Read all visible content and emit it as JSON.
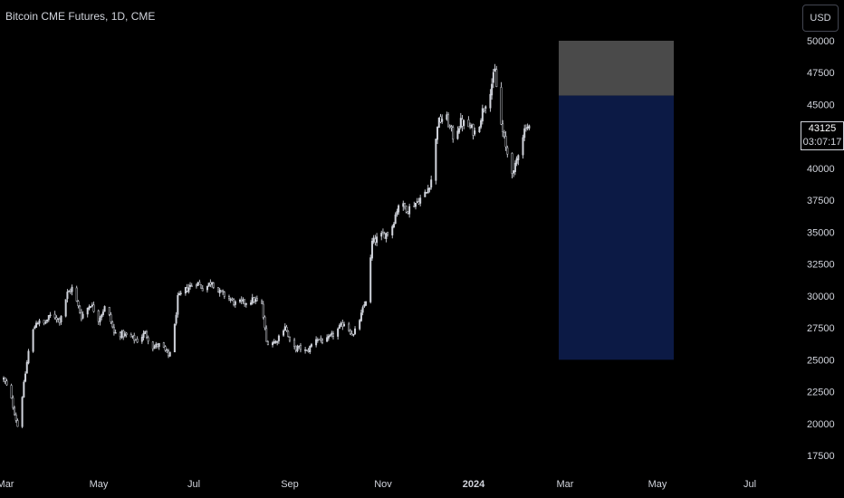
{
  "header": {
    "title": "Bitcoin CME Futures, 1D, CME"
  },
  "toolbar": {
    "currency_label": "USD"
  },
  "price_tag": {
    "price": "43125",
    "countdown": "03:07:17"
  },
  "colors": {
    "background": "#000000",
    "candle": "#d1d4dc",
    "box_target": "#4a4a4a",
    "box_stop": "#0c1a45",
    "text": "#d1d4dc"
  },
  "chart_data": {
    "type": "candlestick",
    "title": "Bitcoin CME Futures, 1D, CME",
    "xlabel": "",
    "ylabel": "",
    "x_ticks": [
      "Mar",
      "May",
      "Jul",
      "Sep",
      "Nov",
      "2024",
      "Mar",
      "May",
      "Jul"
    ],
    "y_ticks": [
      50000,
      47500,
      45000,
      42500,
      40000,
      37500,
      35000,
      32500,
      30000,
      27500,
      25000,
      22500,
      20000,
      17500
    ],
    "ylim": [
      16000,
      52000
    ],
    "xlim": [
      "2023-03-01",
      "2024-07-31"
    ],
    "last_price": 43125,
    "grid": false,
    "path": [
      [
        "2023-03-01",
        23500
      ],
      [
        "2023-03-05",
        22400
      ],
      [
        "2023-03-10",
        19800
      ],
      [
        "2023-03-13",
        22200
      ],
      [
        "2023-03-18",
        26500
      ],
      [
        "2023-03-22",
        28000
      ],
      [
        "2023-03-27",
        27800
      ],
      [
        "2023-04-01",
        28600
      ],
      [
        "2023-04-06",
        28100
      ],
      [
        "2023-04-11",
        30200
      ],
      [
        "2023-04-14",
        30600
      ],
      [
        "2023-04-20",
        28400
      ],
      [
        "2023-04-26",
        29400
      ],
      [
        "2023-05-01",
        28200
      ],
      [
        "2023-05-06",
        29300
      ],
      [
        "2023-05-11",
        27100
      ],
      [
        "2023-05-16",
        27000
      ],
      [
        "2023-05-21",
        26800
      ],
      [
        "2023-05-26",
        26500
      ],
      [
        "2023-05-31",
        27100
      ],
      [
        "2023-06-05",
        26000
      ],
      [
        "2023-06-10",
        26200
      ],
      [
        "2023-06-15",
        25300
      ],
      [
        "2023-06-18",
        26500
      ],
      [
        "2023-06-21",
        29800
      ],
      [
        "2023-06-27",
        30600
      ],
      [
        "2023-07-03",
        31100
      ],
      [
        "2023-07-08",
        30500
      ],
      [
        "2023-07-13",
        31200
      ],
      [
        "2023-07-16",
        30400
      ],
      [
        "2023-07-22",
        30000
      ],
      [
        "2023-07-28",
        29400
      ],
      [
        "2023-08-03",
        29500
      ],
      [
        "2023-08-09",
        29700
      ],
      [
        "2023-08-14",
        29300
      ],
      [
        "2023-08-17",
        26400
      ],
      [
        "2023-08-23",
        26400
      ],
      [
        "2023-08-29",
        27700
      ],
      [
        "2023-09-02",
        25900
      ],
      [
        "2023-09-08",
        25900
      ],
      [
        "2023-09-12",
        25600
      ],
      [
        "2023-09-18",
        26700
      ],
      [
        "2023-09-24",
        26400
      ],
      [
        "2023-09-30",
        27100
      ],
      [
        "2023-10-06",
        27900
      ],
      [
        "2023-10-12",
        26900
      ],
      [
        "2023-10-17",
        28500
      ],
      [
        "2023-10-21",
        30100
      ],
      [
        "2023-10-24",
        34200
      ],
      [
        "2023-10-30",
        34700
      ],
      [
        "2023-11-05",
        35100
      ],
      [
        "2023-11-10",
        37200
      ],
      [
        "2023-11-16",
        36800
      ],
      [
        "2023-11-22",
        37400
      ],
      [
        "2023-11-28",
        38100
      ],
      [
        "2023-12-02",
        39500
      ],
      [
        "2023-12-05",
        43500
      ],
      [
        "2023-12-10",
        44200
      ],
      [
        "2023-12-15",
        42500
      ],
      [
        "2023-12-20",
        43600
      ],
      [
        "2023-12-25",
        43300
      ],
      [
        "2023-12-30",
        42700
      ],
      [
        "2024-01-03",
        44500
      ],
      [
        "2024-01-08",
        46200
      ],
      [
        "2024-01-11",
        47600
      ],
      [
        "2024-01-14",
        44000
      ],
      [
        "2024-01-18",
        41600
      ],
      [
        "2024-01-23",
        39500
      ],
      [
        "2024-01-27",
        41900
      ],
      [
        "2024-01-31",
        43400
      ],
      [
        "2024-02-03",
        43125
      ]
    ],
    "position_box": {
      "start": "2024-02-21",
      "end": "2024-05-05",
      "target_top": 50000,
      "entry": 45700,
      "stop": 25000
    }
  }
}
